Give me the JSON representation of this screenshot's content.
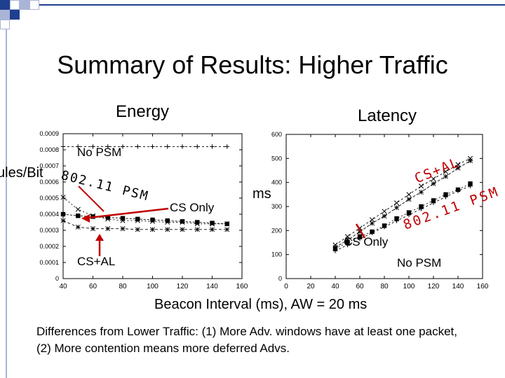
{
  "slide": {
    "title": "Summary of Results: Higher Traffic",
    "energy_title": "Energy",
    "latency_title": "Latency",
    "energy_ylabel": "ules/Bit",
    "latency_ylabel": "ms",
    "xlabel": "Beacon Interval (ms), AW = 20 ms",
    "footnote": "Differences from Lower Traffic: (1) More Adv. windows have at least one packet, (2) More contention means more deferred Advs."
  },
  "colors": {
    "accent": "#1f3f8f",
    "deco_light": "#aab4d6",
    "annotation": "#c00000",
    "line": "#000000"
  },
  "chart_data": [
    {
      "type": "line",
      "title": "Energy",
      "ylabel": "ules/Bit",
      "x": [
        40,
        50,
        60,
        70,
        80,
        90,
        100,
        110,
        120,
        130,
        140,
        150
      ],
      "xlim": [
        40,
        160
      ],
      "ylim": [
        0,
        0.0009
      ],
      "xticks": [
        "40",
        "60",
        "80",
        "100",
        "120",
        "140",
        "160"
      ],
      "yticks": [
        "0",
        "0.0001",
        "0.0002",
        "0.0003",
        "0.0004",
        "0.0005",
        "0.0006",
        "0.0007",
        "0.0008",
        "0.0009"
      ],
      "series": [
        {
          "marker": "plus",
          "values": [
            0.00082,
            0.00082,
            0.00082,
            0.00082,
            0.00082,
            0.00082,
            0.00082,
            0.00082,
            0.00082,
            0.00082,
            0.00082,
            0.00082
          ]
        },
        {
          "marker": "square",
          "values": [
            0.0004,
            0.00039,
            0.000385,
            0.00038,
            0.000375,
            0.00037,
            0.000365,
            0.00036,
            0.000355,
            0.00035,
            0.000345,
            0.00034
          ]
        },
        {
          "marker": "x",
          "values": [
            0.000505,
            0.00043,
            0.00039,
            0.00037,
            0.00036,
            0.00036,
            0.000355,
            0.00035,
            0.00035,
            0.00034,
            0.00034,
            0.00034
          ]
        },
        {
          "marker": "star",
          "values": [
            0.00036,
            0.00032,
            0.00031,
            0.00031,
            0.00031,
            0.000305,
            0.000305,
            0.000305,
            0.000305,
            0.000305,
            0.000305,
            0.000305
          ]
        }
      ],
      "annotations": [
        {
          "text": "No PSM",
          "color": "black"
        },
        {
          "text": "802.11 PSM",
          "color": "black"
        },
        {
          "text": "CS Only",
          "color": "black"
        },
        {
          "text": "CS+AL",
          "color": "black"
        }
      ]
    },
    {
      "type": "line",
      "title": "Latency",
      "ylabel": "ms",
      "x": [
        40,
        50,
        60,
        70,
        80,
        90,
        100,
        110,
        120,
        130,
        140,
        150
      ],
      "xlim": [
        0,
        160
      ],
      "ylim": [
        0,
        600
      ],
      "xticks": [
        "0",
        "20",
        "40",
        "60",
        "80",
        "100",
        "120",
        "140",
        "160"
      ],
      "yticks": [
        "0",
        "100",
        "200",
        "300",
        "400",
        "500",
        "600"
      ],
      "series": [
        {
          "marker": "x",
          "values": [
            140,
            175,
            210,
            245,
            280,
            315,
            350,
            385,
            415,
            445,
            475,
            500
          ]
        },
        {
          "marker": "star",
          "values": [
            130,
            160,
            195,
            230,
            260,
            295,
            330,
            360,
            395,
            425,
            460,
            490
          ]
        },
        {
          "marker": "square",
          "values": [
            125,
            150,
            175,
            195,
            220,
            250,
            275,
            300,
            325,
            350,
            370,
            395
          ]
        },
        {
          "marker": "plus",
          "values": [
            115,
            140,
            165,
            190,
            215,
            240,
            265,
            290,
            315,
            340,
            365,
            385
          ]
        }
      ],
      "annotations": [
        {
          "text": "CS+AL",
          "color": "red"
        },
        {
          "text": "802.11 PSM",
          "color": "red"
        },
        {
          "text": "CS Only",
          "color": "black"
        },
        {
          "text": "No PSM",
          "color": "black"
        }
      ]
    }
  ]
}
